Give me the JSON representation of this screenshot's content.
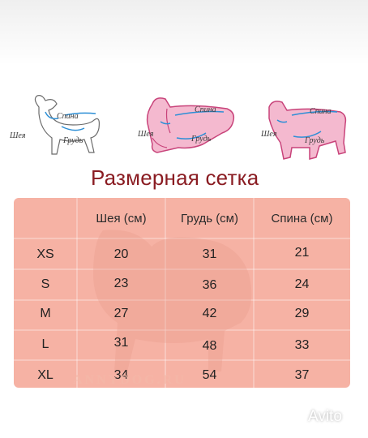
{
  "illustrations": [
    {
      "neck": "Шея",
      "back": "Спина",
      "chest": "Грудь"
    },
    {
      "neck": "Шея",
      "back": "Спина",
      "chest": "Грудь"
    },
    {
      "neck": "Шея",
      "back": "Спина",
      "chest": "Грудь"
    }
  ],
  "title": "Размерная сетка",
  "table": {
    "headers": [
      "Шея (см)",
      "Грудь (см)",
      "Спина (см)"
    ],
    "rows": [
      {
        "size": "XS",
        "neck": "20",
        "chest": "31",
        "back": "21"
      },
      {
        "size": "S",
        "neck": "23",
        "chest": "36",
        "back": "24"
      },
      {
        "size": "M",
        "neck": "27",
        "chest": "42",
        "back": "29"
      },
      {
        "size": "L",
        "neck": "31",
        "chest": "48",
        "back": "33"
      },
      {
        "size": "XL",
        "neck": "34",
        "chest": "54",
        "back": "37"
      }
    ]
  },
  "watermark": "ANNYDOG.RU",
  "brand": "Avito",
  "colors": {
    "table_bg": "#f6b2a4",
    "title": "#8a1c22",
    "outline": "#c8437a"
  }
}
